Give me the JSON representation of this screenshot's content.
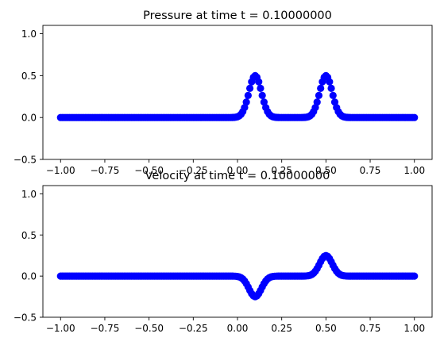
{
  "chart_data": [
    {
      "type": "scatter",
      "title": "Pressure at time t =      0.10000000",
      "xlabel": "",
      "ylabel": "",
      "xlim": [
        -1.1,
        1.1
      ],
      "ylim": [
        -0.5,
        1.1
      ],
      "xticks": [
        -1.0,
        -0.75,
        -0.5,
        -0.25,
        0.0,
        0.25,
        0.5,
        0.75,
        1.0
      ],
      "xtick_labels": [
        "−1.00",
        "−0.75",
        "−0.50",
        "−0.25",
        "0.00",
        "0.25",
        "0.50",
        "0.75",
        "1.00"
      ],
      "yticks": [
        -0.5,
        0.0,
        0.5,
        1.0
      ],
      "ytick_labels": [
        "−0.5",
        "0.0",
        "0.5",
        "1.0"
      ],
      "grid": false,
      "marker_color": "#0000ff",
      "series": [
        {
          "x_range": [
            -1.0,
            1.0
          ],
          "points": 201,
          "pulses": [
            {
              "center": 0.1,
              "amplitude": 0.5,
              "width": 0.05
            },
            {
              "center": 0.5,
              "amplitude": 0.5,
              "width": 0.05
            }
          ]
        }
      ]
    },
    {
      "type": "scatter",
      "title": "Velocity at time t =      0.10000000",
      "xlabel": "",
      "ylabel": "",
      "xlim": [
        -1.1,
        1.1
      ],
      "ylim": [
        -0.5,
        1.1
      ],
      "xticks": [
        -1.0,
        -0.75,
        -0.5,
        -0.25,
        0.0,
        0.25,
        0.5,
        0.75,
        1.0
      ],
      "xtick_labels": [
        "−1.00",
        "−0.75",
        "−0.50",
        "−0.25",
        "0.00",
        "0.25",
        "0.50",
        "0.75",
        "1.00"
      ],
      "yticks": [
        -0.5,
        0.0,
        0.5,
        1.0
      ],
      "ytick_labels": [
        "−0.5",
        "0.0",
        "0.5",
        "1.0"
      ],
      "grid": false,
      "marker_color": "#0000ff",
      "series": [
        {
          "x_range": [
            -1.0,
            1.0
          ],
          "points": 201,
          "pulses": [
            {
              "center": 0.1,
              "amplitude": -0.25,
              "width": 0.05
            },
            {
              "center": 0.5,
              "amplitude": 0.25,
              "width": 0.05
            }
          ]
        }
      ]
    }
  ]
}
